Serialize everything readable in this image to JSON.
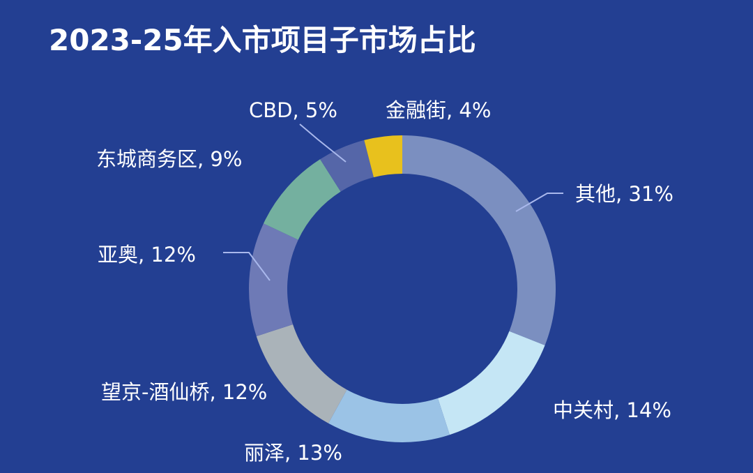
{
  "chart_data": {
    "type": "pie",
    "variant": "donut",
    "title": "2023-25年入市项目子市场占比",
    "start_angle_deg": 0,
    "direction": "clockwise",
    "slices": [
      {
        "name": "其他",
        "value": 31,
        "label": "其他, 31%",
        "color": "#7b8fc0"
      },
      {
        "name": "中关村",
        "value": 14,
        "label": "中关村, 14%",
        "color": "#c5e6f5"
      },
      {
        "name": "丽泽",
        "value": 13,
        "label": "丽泽, 13%",
        "color": "#9bc3e6"
      },
      {
        "name": "望京-酒仙桥",
        "value": 12,
        "label": "望京-酒仙桥, 12%",
        "color": "#aab3b9"
      },
      {
        "name": "亚奥",
        "value": 12,
        "label": "亚奥, 12%",
        "color": "#6e7ab6"
      },
      {
        "name": "东城商务区",
        "value": 9,
        "label": "东城商务区, 9%",
        "color": "#74b09f"
      },
      {
        "name": "CBD",
        "value": 5,
        "label": "CBD, 5%",
        "color": "#5566a8"
      },
      {
        "name": "金融街",
        "value": 4,
        "label": "金融街, 4%",
        "color": "#e8c11d"
      }
    ],
    "leader_line_color": "#a9b8ec",
    "background_color": "#233f92",
    "title_color": "#ffffff",
    "label_color": "#ffffff"
  }
}
